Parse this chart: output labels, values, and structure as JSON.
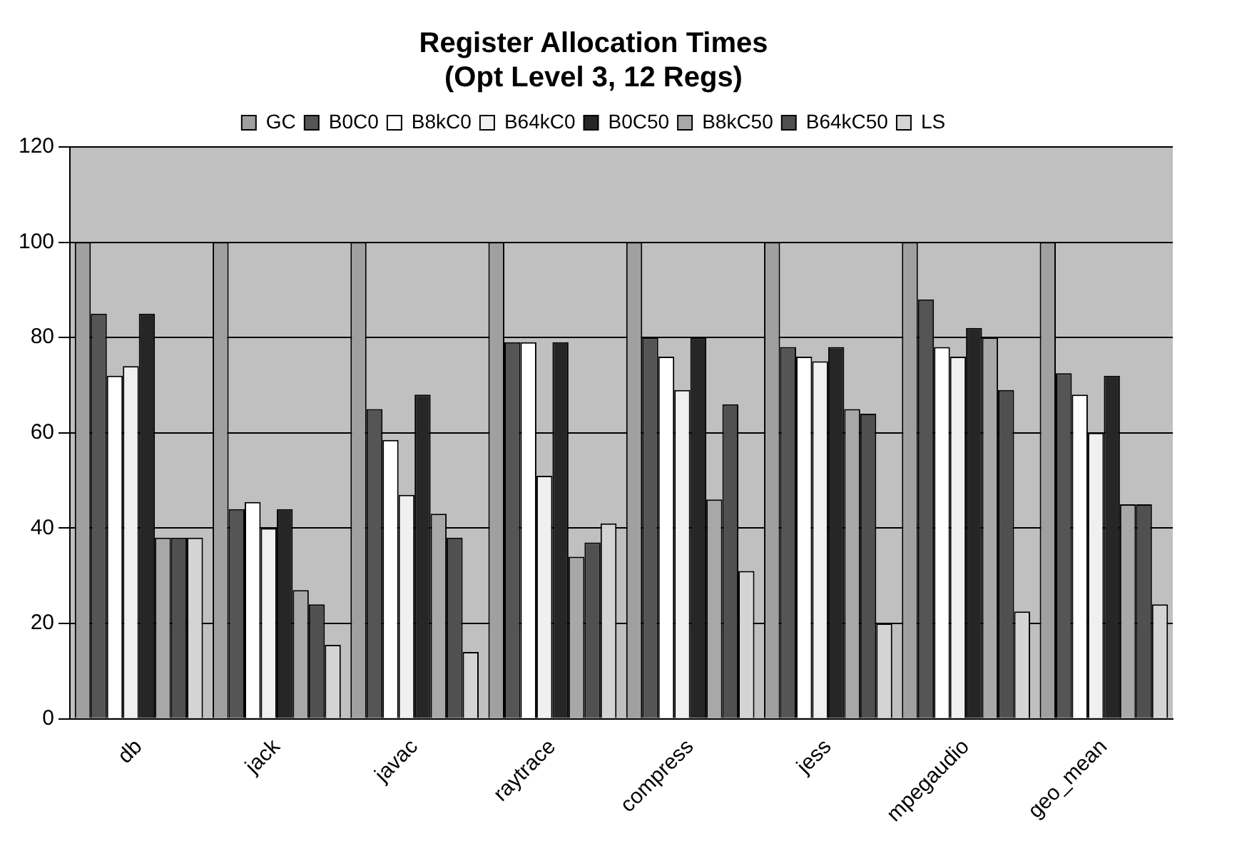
{
  "chart_data": {
    "type": "bar",
    "title": [
      "Register Allocation Times",
      "(Opt Level 3, 12 Regs)"
    ],
    "categories": [
      "db",
      "jack",
      "javac",
      "raytrace",
      "compress",
      "jess",
      "mpegaudio",
      "geo_mean"
    ],
    "series": [
      {
        "name": "GC",
        "color": "#a0a0a0",
        "values": [
          100,
          100,
          100,
          100,
          100,
          100,
          100,
          100
        ]
      },
      {
        "name": "B0C0",
        "color": "#555555",
        "values": [
          85,
          44,
          65,
          79,
          80,
          78,
          88,
          72.5
        ]
      },
      {
        "name": "B8kC0",
        "color": "#ffffff",
        "values": [
          72,
          45.5,
          58.5,
          79,
          76,
          76,
          78,
          68
        ]
      },
      {
        "name": "B64kC0",
        "color": "#f0f0f0",
        "values": [
          74,
          40,
          47,
          51,
          69,
          75,
          76,
          60
        ]
      },
      {
        "name": "B0C50",
        "color": "#262626",
        "values": [
          85,
          44,
          68,
          79,
          80,
          78,
          82,
          72
        ]
      },
      {
        "name": "B8kC50",
        "color": "#a8a8a8",
        "values": [
          38,
          27,
          43,
          34,
          46,
          65,
          80,
          45
        ]
      },
      {
        "name": "B64kC50",
        "color": "#505050",
        "values": [
          38,
          24,
          38,
          37,
          66,
          64,
          69,
          45
        ]
      },
      {
        "name": "LS",
        "color": "#d4d4d4",
        "values": [
          38,
          15.5,
          14,
          41,
          31,
          20,
          22.5,
          24
        ]
      }
    ],
    "ylim": [
      0,
      120
    ],
    "yticks": [
      0,
      20,
      40,
      60,
      80,
      100,
      120
    ],
    "grid": "y",
    "legend": "top"
  }
}
